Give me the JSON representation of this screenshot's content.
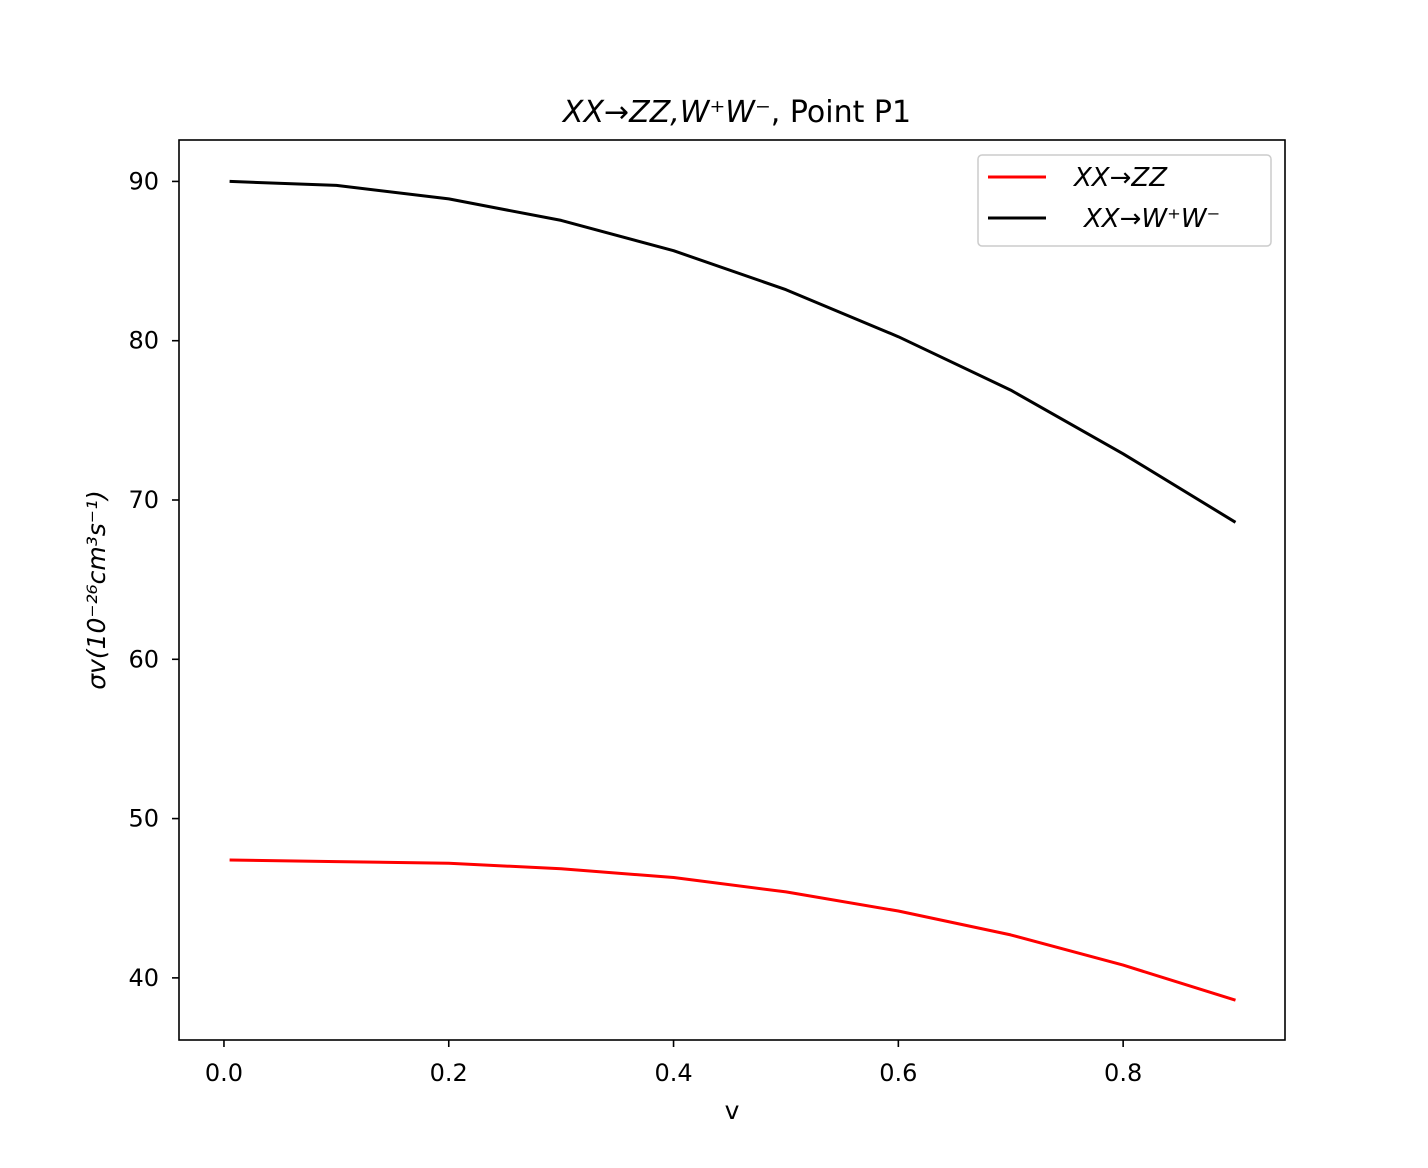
{
  "chart_data": {
    "type": "line",
    "title": {
      "math": "XX→ZZ,W⁺W⁻",
      "plain": ", Point P1"
    },
    "xlabel": "v",
    "ylabel": "σv(10⁻²⁶cm³s⁻¹)",
    "xlim": [
      -0.04,
      0.944
    ],
    "ylim": [
      36.1,
      92.6
    ],
    "xticks": [
      0.0,
      0.2,
      0.4,
      0.6,
      0.8
    ],
    "xtick_labels": [
      "0.0",
      "0.2",
      "0.4",
      "0.6",
      "0.8"
    ],
    "yticks": [
      40,
      50,
      60,
      70,
      80,
      90
    ],
    "ytick_labels": [
      "40",
      "50",
      "60",
      "70",
      "80",
      "90"
    ],
    "grid": false,
    "legend_position": "top-right",
    "x": [
      0.005,
      0.1,
      0.2,
      0.3,
      0.4,
      0.5,
      0.6,
      0.7,
      0.8,
      0.9
    ],
    "series": [
      {
        "name": "XX→ZZ",
        "color": "#ff0000",
        "values": [
          47.4,
          47.3,
          47.2,
          46.85,
          46.3,
          45.4,
          44.2,
          42.7,
          40.8,
          38.6
        ]
      },
      {
        "name": "XX→W⁺W⁻",
        "color": "#000000",
        "values": [
          90.0,
          89.75,
          88.9,
          87.55,
          85.65,
          83.2,
          80.25,
          76.9,
          72.9,
          68.6
        ]
      }
    ]
  }
}
